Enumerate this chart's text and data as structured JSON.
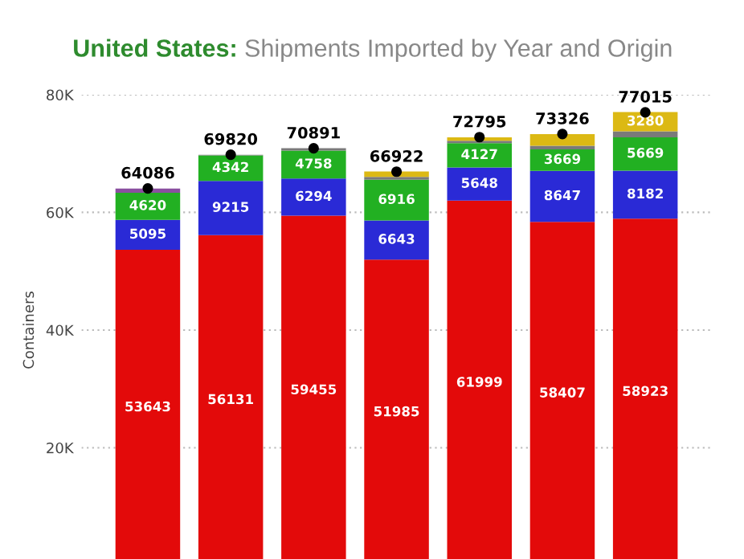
{
  "chart_data": {
    "type": "bar",
    "stacked": true,
    "title": "United States:",
    "subtitle": "Shipments Imported by Year and Origin",
    "ylabel": "Containers",
    "categories": [
      null,
      null,
      null,
      null,
      null,
      null,
      null
    ],
    "series": [
      {
        "color": "#e30a0a",
        "values": [
          53643,
          56131,
          59455,
          51985,
          61999,
          58407,
          58923
        ],
        "value_labels": [
          "53643",
          "56131",
          "59455",
          "51985",
          "61999",
          "58407",
          "58923"
        ]
      },
      {
        "color": "#2a2ad6",
        "values": [
          5095,
          9215,
          6294,
          6643,
          5648,
          8647,
          8182
        ],
        "value_labels": [
          "5095",
          "9215",
          "6294",
          "6643",
          "5648",
          "8647",
          "8182"
        ]
      },
      {
        "color": "#22b022",
        "values": [
          4620,
          4342,
          4758,
          6916,
          4127,
          3669,
          5669
        ],
        "value_labels": [
          "4620",
          "4342",
          "4758",
          "6916",
          "4127",
          "3669",
          "5669"
        ]
      },
      {
        "color": "#7a7a7a",
        "values": [
          0,
          100,
          400,
          500,
          400,
          600,
          1000
        ]
      },
      {
        "color": "#dcb914",
        "values": [
          0,
          0,
          0,
          900,
          600,
          2000,
          3280
        ],
        "value_labels": [
          null,
          null,
          null,
          null,
          null,
          null,
          "3280"
        ]
      },
      {
        "color": "#8a4fa0",
        "values": [
          700,
          0,
          0,
          0,
          0,
          0,
          0
        ]
      },
      {
        "type": "scatter",
        "color": "#000000",
        "marker": "circle",
        "values": [
          64086,
          69820,
          70891,
          66922,
          72795,
          73326,
          77015
        ],
        "value_labels": [
          "64086",
          "69820",
          "70891",
          "66922",
          "72795",
          "73326",
          "77015"
        ]
      }
    ],
    "ylim": [
      0,
      80000
    ],
    "yticks": [
      {
        "value": 20000,
        "label": "20K"
      },
      {
        "value": 40000,
        "label": "40K"
      },
      {
        "value": 60000,
        "label": "60K"
      },
      {
        "value": 80000,
        "label": "80K"
      }
    ],
    "grid": "y"
  }
}
